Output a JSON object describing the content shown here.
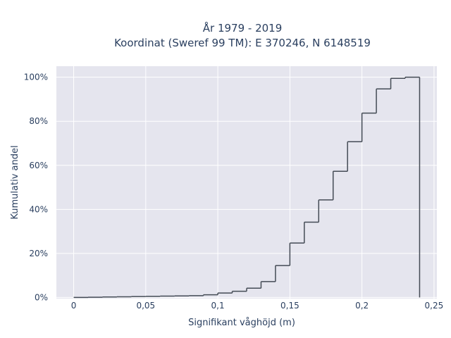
{
  "chart_data": {
    "type": "line",
    "subtype": "cumulative-step",
    "title_line1": "År 1979 - 2019",
    "title_line2": "Koordinat (Sweref 99 TM): E 370246, N 6148519",
    "xlabel": "Signifikant våghöjd (m)",
    "ylabel": "Kumulativ andel",
    "xlim": [
      -0.012,
      0.252
    ],
    "ylim": [
      -0.005,
      1.05
    ],
    "x_ticks": [
      0,
      0.05,
      0.1,
      0.15,
      0.2,
      0.25
    ],
    "x_tick_labels": [
      "0",
      "0,05",
      "0,1",
      "0,15",
      "0,2",
      "0,25"
    ],
    "y_ticks": [
      0,
      0.2,
      0.4,
      0.6,
      0.8,
      1.0
    ],
    "y_tick_labels": [
      "0%",
      "20%",
      "40%",
      "60%",
      "80%",
      "100%"
    ],
    "grid": true,
    "line_color": "#444b55",
    "plot_bg": "#e5e5ee",
    "bin_width": 0.01,
    "bin_starts": [
      0,
      0.01,
      0.02,
      0.03,
      0.04,
      0.05,
      0.06,
      0.07,
      0.08,
      0.09,
      0.1,
      0.11,
      0.12,
      0.13,
      0.14,
      0.15,
      0.16,
      0.17,
      0.18,
      0.19,
      0.2,
      0.21,
      0.22,
      0.23
    ],
    "values": [
      0.0,
      0.001,
      0.002,
      0.003,
      0.004,
      0.005,
      0.006,
      0.007,
      0.008,
      0.012,
      0.02,
      0.028,
      0.042,
      0.072,
      0.145,
      0.247,
      0.342,
      0.443,
      0.573,
      0.707,
      0.837,
      0.947,
      0.995,
      1.0
    ]
  }
}
